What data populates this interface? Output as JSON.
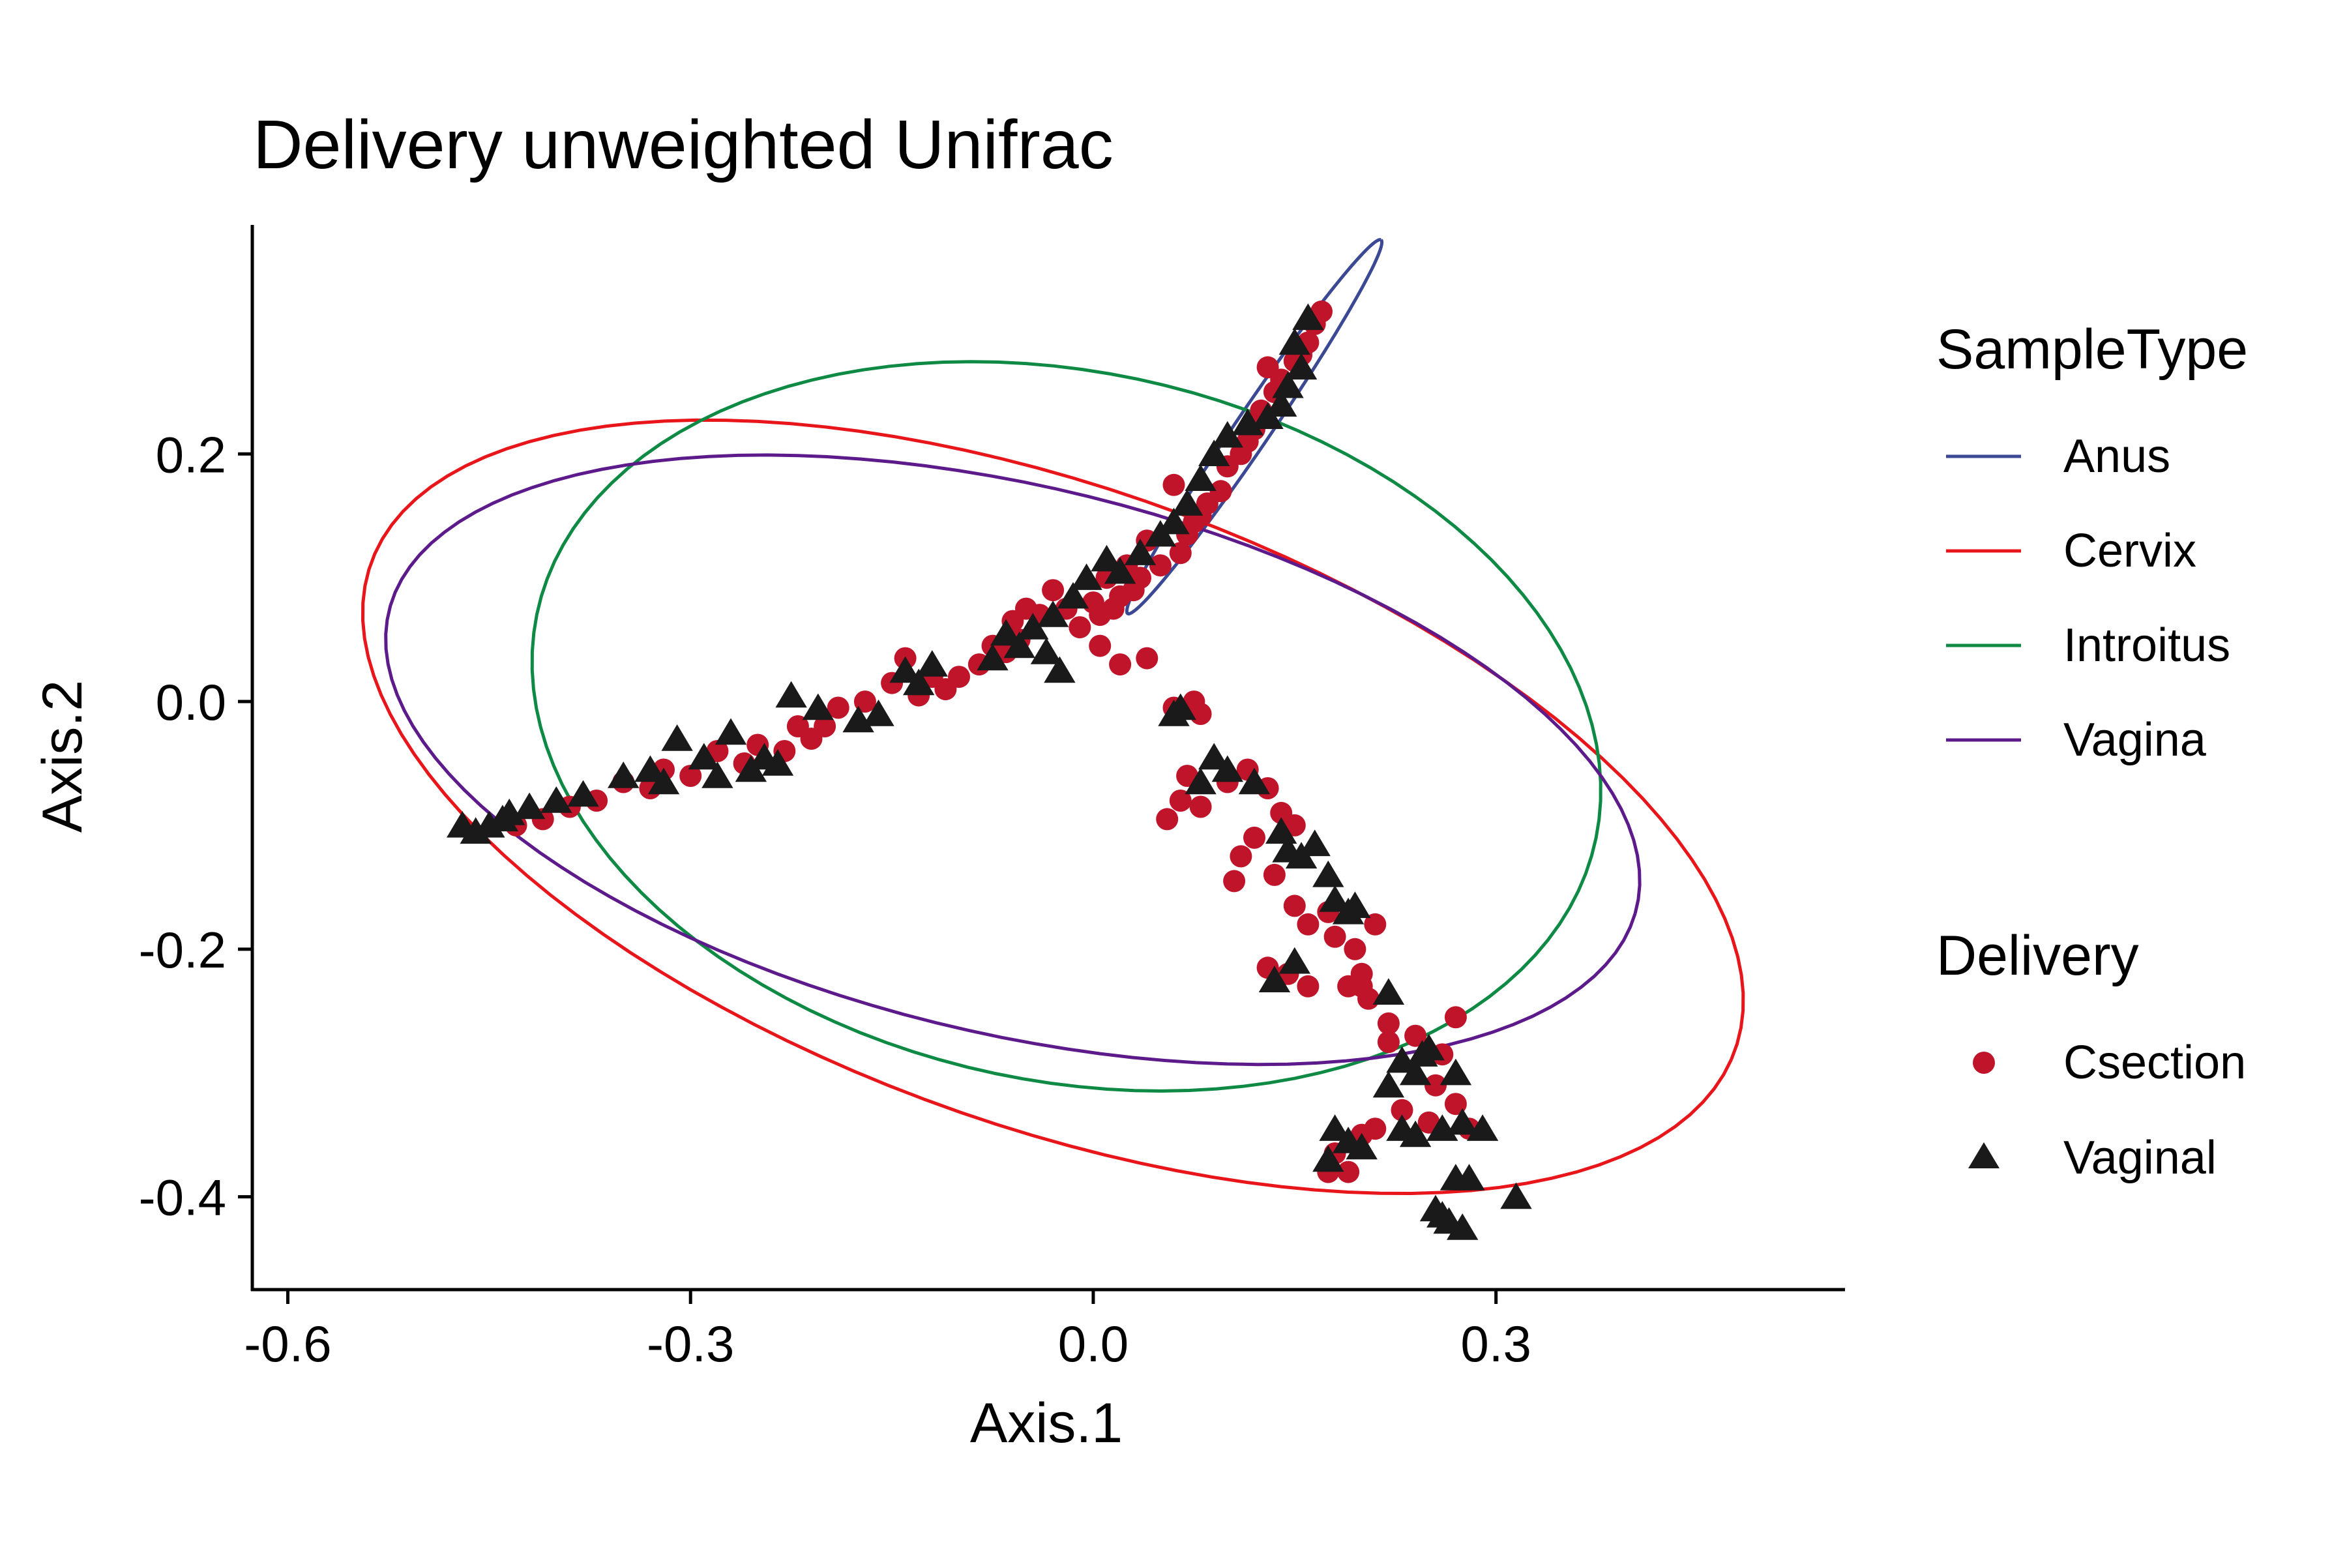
{
  "chart_data": {
    "type": "scatter",
    "title": "Delivery unweighted Unifrac",
    "xlabel": "Axis.1",
    "ylabel": "Axis.2",
    "xlim": [
      -0.625,
      0.56
    ],
    "ylim": [
      -0.475,
      0.385
    ],
    "x_ticks": [
      "-0.6",
      "-0.3",
      "0.0",
      "0.3"
    ],
    "y_ticks": [
      "0.2",
      "0.0",
      "-0.2",
      "-0.4"
    ],
    "grid": false,
    "legend_position": "right",
    "shape_legend": {
      "title": "Delivery",
      "entries": [
        {
          "name": "Csection",
          "shape": "circle",
          "color": "#C0142A"
        },
        {
          "name": "Vaginal",
          "shape": "triangle",
          "color": "#1A1A1A"
        }
      ]
    },
    "ellipse_legend": {
      "title": "SampleType",
      "entries": [
        {
          "name": "Anus",
          "color": "#3B4994"
        },
        {
          "name": "Cervix",
          "color": "#E8151B"
        },
        {
          "name": "Introitus",
          "color": "#0E8A45"
        },
        {
          "name": "Vagina",
          "color": "#5C1A8B"
        }
      ]
    },
    "ellipses": [
      {
        "group": "Anus",
        "center": [
          0.12,
          0.222
        ],
        "semi_major": 0.178,
        "semi_minor": 0.0135,
        "angle_deg": 58
      },
      {
        "group": "Cervix",
        "center": [
          -0.03,
          -0.085
        ],
        "semi_major": 0.545,
        "semi_minor": 0.255,
        "angle_deg": -22
      },
      {
        "group": "Introitus",
        "center": [
          -0.02,
          -0.02
        ],
        "semi_major": 0.405,
        "semi_minor": 0.285,
        "angle_deg": -15
      },
      {
        "group": "Vagina",
        "center": [
          -0.06,
          -0.047
        ],
        "semi_major": 0.48,
        "semi_minor": 0.22,
        "angle_deg": -15
      }
    ],
    "series": [
      {
        "name": "Csection",
        "shape": "circle",
        "color": "#C0142A",
        "points": [
          [
            0.17,
            0.315
          ],
          [
            0.165,
            0.305
          ],
          [
            0.16,
            0.29
          ],
          [
            0.155,
            0.28
          ],
          [
            0.15,
            0.275
          ],
          [
            0.14,
            0.26
          ],
          [
            0.13,
            0.27
          ],
          [
            0.135,
            0.25
          ],
          [
            0.125,
            0.235
          ],
          [
            0.12,
            0.22
          ],
          [
            0.115,
            0.21
          ],
          [
            0.11,
            0.2
          ],
          [
            0.1,
            0.19
          ],
          [
            0.095,
            0.17
          ],
          [
            0.085,
            0.16
          ],
          [
            0.08,
            0.15
          ],
          [
            0.075,
            0.145
          ],
          [
            0.07,
            0.135
          ],
          [
            0.06,
            0.175
          ],
          [
            0.065,
            0.12
          ],
          [
            0.05,
            0.11
          ],
          [
            0.04,
            0.13
          ],
          [
            0.035,
            0.1
          ],
          [
            0.03,
            0.09
          ],
          [
            0.025,
            0.11
          ],
          [
            0.02,
            0.085
          ],
          [
            0.015,
            0.075
          ],
          [
            0.01,
            0.1
          ],
          [
            0.005,
            0.07
          ],
          [
            0.0,
            0.08
          ],
          [
            -0.01,
            0.06
          ],
          [
            -0.02,
            0.075
          ],
          [
            -0.03,
            0.09
          ],
          [
            -0.04,
            0.07
          ],
          [
            -0.05,
            0.075
          ],
          [
            -0.06,
            0.065
          ],
          [
            -0.055,
            0.05
          ],
          [
            -0.065,
            0.04
          ],
          [
            -0.075,
            0.045
          ],
          [
            -0.085,
            0.03
          ],
          [
            -0.1,
            0.02
          ],
          [
            -0.11,
            0.01
          ],
          [
            -0.12,
            0.02
          ],
          [
            -0.13,
            0.005
          ],
          [
            -0.14,
            0.035
          ],
          [
            -0.15,
            0.015
          ],
          [
            -0.17,
            0.0
          ],
          [
            -0.19,
            -0.005
          ],
          [
            -0.2,
            -0.02
          ],
          [
            -0.21,
            -0.03
          ],
          [
            -0.22,
            -0.02
          ],
          [
            -0.23,
            -0.04
          ],
          [
            -0.25,
            -0.035
          ],
          [
            -0.26,
            -0.05
          ],
          [
            -0.28,
            -0.04
          ],
          [
            -0.3,
            -0.06
          ],
          [
            -0.32,
            -0.055
          ],
          [
            -0.33,
            -0.07
          ],
          [
            -0.35,
            -0.065
          ],
          [
            -0.37,
            -0.08
          ],
          [
            -0.39,
            -0.085
          ],
          [
            -0.41,
            -0.095
          ],
          [
            -0.43,
            -0.1
          ],
          [
            0.005,
            0.045
          ],
          [
            0.02,
            0.03
          ],
          [
            0.04,
            0.035
          ],
          [
            0.06,
            -0.005
          ],
          [
            0.075,
            0.0
          ],
          [
            0.08,
            -0.01
          ],
          [
            0.07,
            -0.06
          ],
          [
            0.065,
            -0.08
          ],
          [
            0.055,
            -0.095
          ],
          [
            0.08,
            -0.085
          ],
          [
            0.1,
            -0.065
          ],
          [
            0.115,
            -0.055
          ],
          [
            0.13,
            -0.07
          ],
          [
            0.14,
            -0.09
          ],
          [
            0.15,
            -0.1
          ],
          [
            0.12,
            -0.11
          ],
          [
            0.11,
            -0.125
          ],
          [
            0.105,
            -0.145
          ],
          [
            0.135,
            -0.14
          ],
          [
            0.15,
            -0.165
          ],
          [
            0.16,
            -0.18
          ],
          [
            0.175,
            -0.17
          ],
          [
            0.18,
            -0.19
          ],
          [
            0.195,
            -0.2
          ],
          [
            0.2,
            -0.22
          ],
          [
            0.21,
            -0.18
          ],
          [
            0.2,
            -0.23
          ],
          [
            0.13,
            -0.215
          ],
          [
            0.145,
            -0.22
          ],
          [
            0.16,
            -0.23
          ],
          [
            0.19,
            -0.23
          ],
          [
            0.205,
            -0.24
          ],
          [
            0.22,
            -0.26
          ],
          [
            0.24,
            -0.27
          ],
          [
            0.27,
            -0.255
          ],
          [
            0.255,
            -0.31
          ],
          [
            0.25,
            -0.34
          ],
          [
            0.23,
            -0.33
          ],
          [
            0.21,
            -0.345
          ],
          [
            0.2,
            -0.35
          ],
          [
            0.27,
            -0.325
          ],
          [
            0.28,
            -0.345
          ],
          [
            0.18,
            -0.365
          ],
          [
            0.19,
            -0.38
          ],
          [
            0.175,
            -0.38
          ],
          [
            0.22,
            -0.275
          ],
          [
            0.26,
            -0.285
          ]
        ]
      },
      {
        "name": "Vaginal",
        "shape": "triangle",
        "color": "#1A1A1A",
        "points": [
          [
            0.16,
            0.31
          ],
          [
            0.15,
            0.29
          ],
          [
            0.155,
            0.27
          ],
          [
            0.145,
            0.255
          ],
          [
            0.14,
            0.24
          ],
          [
            0.13,
            0.23
          ],
          [
            0.115,
            0.225
          ],
          [
            0.1,
            0.215
          ],
          [
            0.09,
            0.2
          ],
          [
            0.08,
            0.18
          ],
          [
            0.07,
            0.16
          ],
          [
            0.06,
            0.145
          ],
          [
            0.05,
            0.135
          ],
          [
            0.035,
            0.12
          ],
          [
            0.02,
            0.105
          ],
          [
            0.01,
            0.115
          ],
          [
            -0.005,
            0.1
          ],
          [
            -0.015,
            0.085
          ],
          [
            -0.03,
            0.07
          ],
          [
            -0.045,
            0.06
          ],
          [
            -0.055,
            0.045
          ],
          [
            -0.065,
            0.055
          ],
          [
            -0.075,
            0.035
          ],
          [
            -0.035,
            0.04
          ],
          [
            -0.025,
            0.025
          ],
          [
            -0.12,
            0.03
          ],
          [
            -0.13,
            0.015
          ],
          [
            -0.16,
            -0.01
          ],
          [
            -0.175,
            -0.015
          ],
          [
            -0.205,
            -0.005
          ],
          [
            -0.225,
            0.005
          ],
          [
            -0.235,
            -0.05
          ],
          [
            -0.245,
            -0.045
          ],
          [
            -0.255,
            -0.055
          ],
          [
            -0.27,
            -0.025
          ],
          [
            -0.28,
            -0.06
          ],
          [
            -0.29,
            -0.045
          ],
          [
            -0.31,
            -0.03
          ],
          [
            -0.33,
            -0.055
          ],
          [
            -0.35,
            -0.06
          ],
          [
            -0.38,
            -0.075
          ],
          [
            -0.4,
            -0.08
          ],
          [
            -0.42,
            -0.085
          ],
          [
            -0.44,
            -0.095
          ],
          [
            -0.45,
            -0.1
          ],
          [
            -0.46,
            -0.105
          ],
          [
            -0.47,
            -0.1
          ],
          [
            -0.435,
            -0.09
          ],
          [
            -0.32,
            -0.065
          ],
          [
            -0.14,
            0.025
          ],
          [
            0.06,
            -0.01
          ],
          [
            0.065,
            -0.005
          ],
          [
            0.09,
            -0.045
          ],
          [
            0.1,
            -0.055
          ],
          [
            0.08,
            -0.065
          ],
          [
            0.12,
            -0.065
          ],
          [
            0.14,
            -0.105
          ],
          [
            0.145,
            -0.12
          ],
          [
            0.155,
            -0.125
          ],
          [
            0.165,
            -0.115
          ],
          [
            0.175,
            -0.14
          ],
          [
            0.18,
            -0.16
          ],
          [
            0.19,
            -0.17
          ],
          [
            0.195,
            -0.165
          ],
          [
            0.135,
            -0.225
          ],
          [
            0.15,
            -0.21
          ],
          [
            0.22,
            -0.235
          ],
          [
            0.23,
            -0.29
          ],
          [
            0.24,
            -0.3
          ],
          [
            0.245,
            -0.285
          ],
          [
            0.25,
            -0.28
          ],
          [
            0.22,
            -0.31
          ],
          [
            0.23,
            -0.345
          ],
          [
            0.24,
            -0.35
          ],
          [
            0.26,
            -0.345
          ],
          [
            0.275,
            -0.34
          ],
          [
            0.29,
            -0.345
          ],
          [
            0.18,
            -0.345
          ],
          [
            0.175,
            -0.37
          ],
          [
            0.19,
            -0.355
          ],
          [
            0.2,
            -0.36
          ],
          [
            0.27,
            -0.385
          ],
          [
            0.28,
            -0.385
          ],
          [
            0.255,
            -0.41
          ],
          [
            0.26,
            -0.415
          ],
          [
            0.265,
            -0.42
          ],
          [
            0.275,
            -0.425
          ],
          [
            0.315,
            -0.4
          ],
          [
            0.27,
            -0.3
          ]
        ]
      }
    ]
  }
}
